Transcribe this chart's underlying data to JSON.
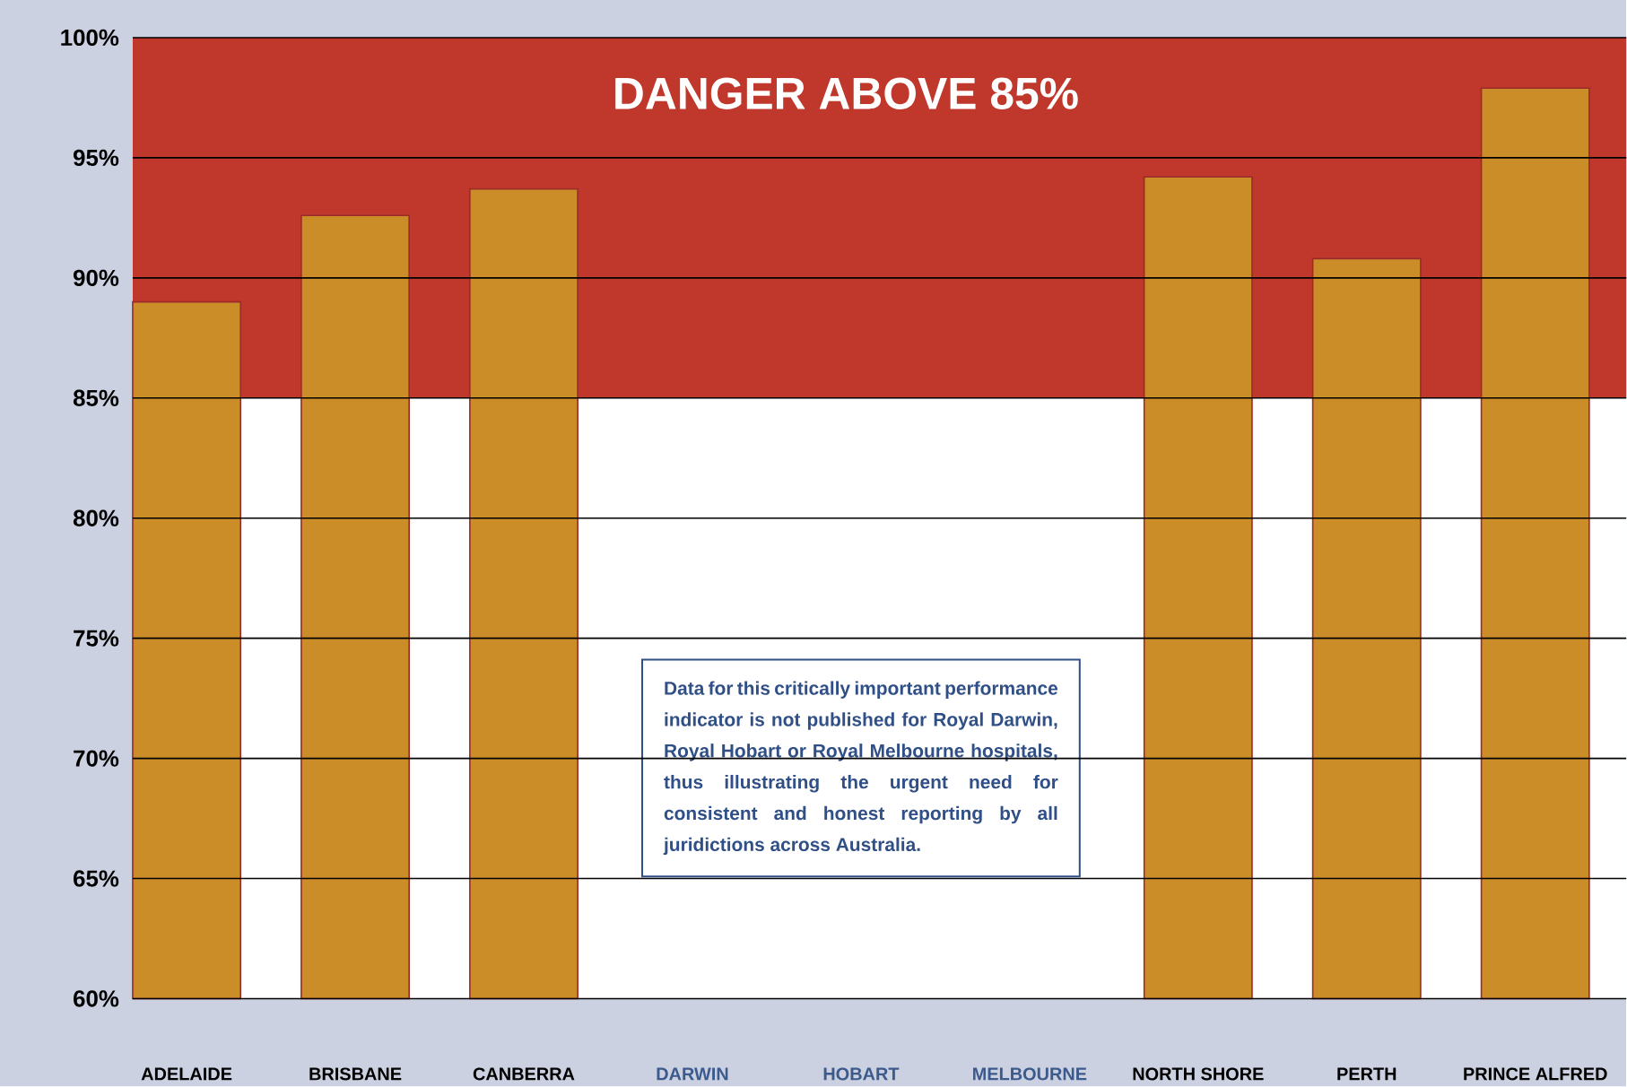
{
  "chart_data": {
    "type": "bar",
    "categories": [
      "ADELAIDE",
      "BRISBANE",
      "CANBERRA",
      "DARWIN",
      "HOBART",
      "MELBOURNE",
      "NORTH SHORE",
      "PERTH",
      "PRINCE ALFRED"
    ],
    "values": [
      89.0,
      92.6,
      93.7,
      null,
      null,
      null,
      94.2,
      90.8,
      97.9
    ],
    "color": "#cb8d28",
    "ylim": [
      60,
      100
    ],
    "yticks": [
      {
        "value": 60,
        "label": "60%"
      },
      {
        "value": 65,
        "label": "65%"
      },
      {
        "value": 70,
        "label": "70%"
      },
      {
        "value": 75,
        "label": "75%"
      },
      {
        "value": 80,
        "label": "80%"
      },
      {
        "value": 85,
        "label": "85%"
      },
      {
        "value": 90,
        "label": "90%"
      },
      {
        "value": 95,
        "label": "95%"
      },
      {
        "value": 100,
        "label": "100%"
      }
    ],
    "grid": "y",
    "bands": [
      {
        "axis": "y",
        "from": 85,
        "to": 100,
        "label": "DANGER ABOVE 85%",
        "color": "#c0372b"
      }
    ],
    "annotations": [
      "Data for this critically important performance indicator is not published for Royal Darwin, Royal Hobart or Royal Melbourne hospitals, thus illustrating the urgent need for consistent and honest reporting by all juridictions across Australia."
    ]
  }
}
